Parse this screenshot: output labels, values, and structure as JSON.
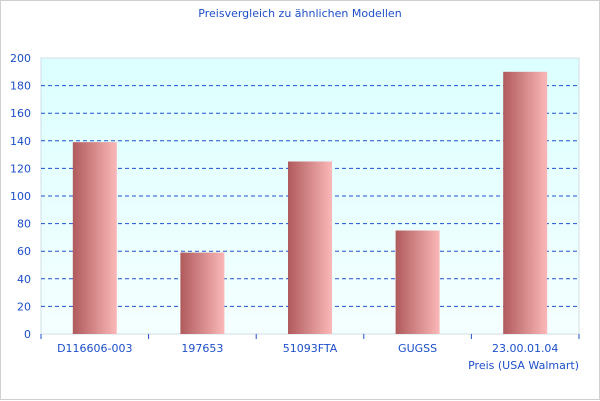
{
  "chart_data": {
    "type": "bar",
    "title": "Preisvergleich zu ähnlichen Modellen",
    "xlabel": "Preis (USA Walmart)",
    "ylabel": "",
    "categories": [
      "D116606-003",
      "197653",
      "51093FTA",
      "GUGSS",
      "23.00.01.04"
    ],
    "values": [
      139,
      59,
      125,
      75,
      190
    ],
    "ylim": [
      0,
      200
    ],
    "yticks": [
      0,
      20,
      40,
      60,
      80,
      100,
      120,
      140,
      160,
      180,
      200
    ],
    "grid": true,
    "colors": {
      "bar_dark": "#b05a5c",
      "bar_light": "#fbb8b8",
      "grid": "#2050d0",
      "text": "#1c4fc9",
      "plot_bg_top": "#dcffff",
      "plot_bg_bottom": "#f5ffff"
    }
  }
}
